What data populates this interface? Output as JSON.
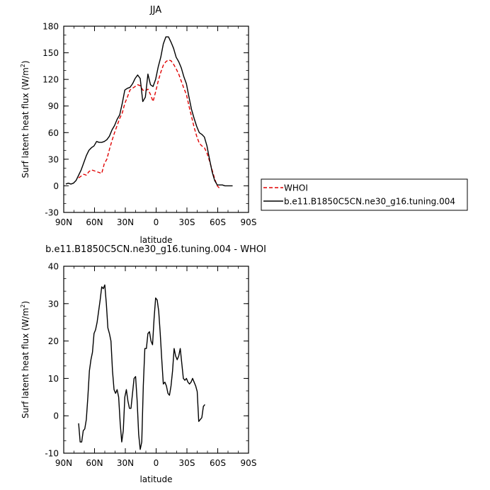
{
  "chart_data": [
    {
      "type": "line",
      "title": "JJA",
      "xlabel": "latitude",
      "ylabel": "Surf latent heat flux (W/m",
      "ylabel_sup": "2",
      "ylabel_close": ")",
      "xlim": [
        90,
        -90
      ],
      "ylim": [
        -30,
        180
      ],
      "xticks": [
        90,
        60,
        30,
        0,
        -30,
        -60,
        -90
      ],
      "xtick_labels": [
        "90N",
        "60N",
        "30N",
        "0",
        "30S",
        "60S",
        "90S"
      ],
      "yticks": [
        -30,
        0,
        30,
        60,
        90,
        120,
        150,
        180
      ],
      "ytick_labels": [
        "-30",
        "0",
        "30",
        "60",
        "90",
        "120",
        "150",
        "180"
      ],
      "legend_position": "right",
      "series": [
        {
          "name": "WHOI",
          "color": "#e00000",
          "dash": "dashed",
          "points": [
            [
              75.5,
              9
            ],
            [
              73,
              11
            ],
            [
              70.5,
              13
            ],
            [
              68,
              12
            ],
            [
              65.5,
              16
            ],
            [
              63,
              18
            ],
            [
              60.5,
              17
            ],
            [
              58,
              16
            ],
            [
              55.5,
              15
            ],
            [
              53,
              14
            ],
            [
              50.5,
              25
            ],
            [
              48,
              30
            ],
            [
              45.5,
              41
            ],
            [
              43,
              51
            ],
            [
              40.5,
              60
            ],
            [
              38,
              68
            ],
            [
              35.5,
              76
            ],
            [
              33,
              82
            ],
            [
              30.5,
              93
            ],
            [
              28,
              100
            ],
            [
              25.5,
              108
            ],
            [
              23,
              110
            ],
            [
              20.5,
              112
            ],
            [
              18,
              114
            ],
            [
              15.5,
              113
            ],
            [
              13,
              108
            ],
            [
              10.5,
              107
            ],
            [
              8,
              109
            ],
            [
              5.5,
              103
            ],
            [
              3,
              95
            ],
            [
              0.5,
              106
            ],
            [
              -2,
              118
            ],
            [
              -4.5,
              128
            ],
            [
              -7,
              136
            ],
            [
              -9.5,
              140
            ],
            [
              -12,
              142
            ],
            [
              -14.5,
              141
            ],
            [
              -17,
              137
            ],
            [
              -19.5,
              132
            ],
            [
              -22,
              126
            ],
            [
              -24.5,
              118
            ],
            [
              -27,
              110
            ],
            [
              -29.5,
              103
            ],
            [
              -32,
              90
            ],
            [
              -34.5,
              78
            ],
            [
              -37,
              66
            ],
            [
              -39.5,
              56
            ],
            [
              -42,
              48
            ],
            [
              -44.5,
              45
            ],
            [
              -47,
              43
            ],
            [
              -49.5,
              37
            ],
            [
              -52,
              28
            ],
            [
              -54.5,
              18
            ],
            [
              -57,
              8
            ],
            [
              -59.5,
              0
            ],
            [
              -62,
              -3
            ]
          ]
        },
        {
          "name": "b.e11.B1850C5CN.ne30_g16.tuning.004",
          "color": "#000000",
          "dash": "solid",
          "points": [
            [
              88,
              2
            ],
            [
              85.5,
              3
            ],
            [
              83,
              2
            ],
            [
              80.5,
              3
            ],
            [
              78,
              6
            ],
            [
              75.5,
              12
            ],
            [
              73,
              18
            ],
            [
              70.5,
              26
            ],
            [
              68,
              34
            ],
            [
              65.5,
              40
            ],
            [
              63,
              43
            ],
            [
              60.5,
              45
            ],
            [
              58,
              50
            ],
            [
              55.5,
              49
            ],
            [
              53,
              49
            ],
            [
              50.5,
              50
            ],
            [
              48,
              52
            ],
            [
              45.5,
              56
            ],
            [
              43,
              63
            ],
            [
              40.5,
              68
            ],
            [
              38,
              75
            ],
            [
              35.5,
              80
            ],
            [
              33,
              93
            ],
            [
              30.5,
              108
            ],
            [
              28,
              110
            ],
            [
              25.5,
              111
            ],
            [
              23,
              115
            ],
            [
              20.5,
              121
            ],
            [
              18,
              125
            ],
            [
              15.5,
              121
            ],
            [
              13,
              95
            ],
            [
              10.5,
              100
            ],
            [
              8,
              126
            ],
            [
              5.5,
              114
            ],
            [
              3,
              112
            ],
            [
              0.5,
              120
            ],
            [
              -2,
              134
            ],
            [
              -4.5,
              145
            ],
            [
              -7,
              160
            ],
            [
              -9.5,
              168
            ],
            [
              -12,
              168
            ],
            [
              -14.5,
              162
            ],
            [
              -17,
              155
            ],
            [
              -19.5,
              145
            ],
            [
              -22,
              140
            ],
            [
              -24.5,
              133
            ],
            [
              -27,
              123
            ],
            [
              -29.5,
              115
            ],
            [
              -32,
              100
            ],
            [
              -34.5,
              86
            ],
            [
              -37,
              76
            ],
            [
              -39.5,
              67
            ],
            [
              -42,
              60
            ],
            [
              -44.5,
              58
            ],
            [
              -47,
              55
            ],
            [
              -49.5,
              45
            ],
            [
              -52,
              30
            ],
            [
              -54.5,
              16
            ],
            [
              -57,
              6
            ],
            [
              -59.5,
              1
            ],
            [
              -62,
              1
            ],
            [
              -64.5,
              1
            ],
            [
              -67,
              0
            ],
            [
              -69.5,
              0
            ],
            [
              -72,
              0
            ],
            [
              -74.5,
              0
            ]
          ]
        }
      ]
    },
    {
      "type": "line",
      "title": "b.e11.B1850C5CN.ne30_g16.tuning.004 - WHOI",
      "xlabel": "latitude",
      "ylabel": "Surf latent heat flux (W/m",
      "ylabel_sup": "2",
      "ylabel_close": ")",
      "xlim": [
        90,
        -90
      ],
      "ylim": [
        -10,
        40
      ],
      "xticks": [
        90,
        60,
        30,
        0,
        -30,
        -60,
        -90
      ],
      "xtick_labels": [
        "90N",
        "60N",
        "30N",
        "0",
        "30S",
        "60S",
        "90S"
      ],
      "yticks": [
        -10,
        0,
        10,
        20,
        30,
        40
      ],
      "ytick_labels": [
        "-10",
        "0",
        "10",
        "20",
        "30",
        "40"
      ],
      "series": [
        {
          "color": "#000000",
          "dash": "solid",
          "points": [
            [
              75.5,
              -2
            ],
            [
              74,
              -7
            ],
            [
              72.5,
              -7
            ],
            [
              71,
              -4
            ],
            [
              69.5,
              -3.5
            ],
            [
              68,
              -1
            ],
            [
              66.5,
              5
            ],
            [
              65,
              12
            ],
            [
              63.5,
              15
            ],
            [
              62,
              17
            ],
            [
              60.5,
              22
            ],
            [
              59,
              23
            ],
            [
              57.5,
              25
            ],
            [
              56,
              28
            ],
            [
              54.5,
              31
            ],
            [
              53,
              34.5
            ],
            [
              51.5,
              34
            ],
            [
              50,
              35
            ],
            [
              48.5,
              30
            ],
            [
              47,
              23.5
            ],
            [
              45.5,
              22
            ],
            [
              44,
              20
            ],
            [
              42.5,
              12
            ],
            [
              41,
              7
            ],
            [
              39.5,
              6
            ],
            [
              38,
              7
            ],
            [
              36.5,
              5
            ],
            [
              35,
              -2
            ],
            [
              33.5,
              -7
            ],
            [
              32,
              -4
            ],
            [
              30.5,
              5
            ],
            [
              29,
              7
            ],
            [
              27.5,
              4
            ],
            [
              26,
              2
            ],
            [
              24.5,
              2
            ],
            [
              23,
              6
            ],
            [
              21.5,
              10
            ],
            [
              20,
              10.5
            ],
            [
              18.5,
              4
            ],
            [
              17,
              -5
            ],
            [
              15.5,
              -9
            ],
            [
              14,
              -7
            ],
            [
              12.5,
              8
            ],
            [
              11,
              18
            ],
            [
              9.5,
              18
            ],
            [
              8,
              22
            ],
            [
              6.5,
              22.5
            ],
            [
              5,
              20
            ],
            [
              3.5,
              19
            ],
            [
              2,
              26
            ],
            [
              0.5,
              31.5
            ],
            [
              -1,
              31
            ],
            [
              -2.5,
              28
            ],
            [
              -4,
              22
            ],
            [
              -5.5,
              15
            ],
            [
              -7,
              8.5
            ],
            [
              -8.5,
              9
            ],
            [
              -10,
              8
            ],
            [
              -11.5,
              6
            ],
            [
              -13,
              5.5
            ],
            [
              -14.5,
              8
            ],
            [
              -16,
              12
            ],
            [
              -17.5,
              18
            ],
            [
              -19,
              16
            ],
            [
              -20.5,
              15
            ],
            [
              -22,
              16
            ],
            [
              -23.5,
              18
            ],
            [
              -25,
              14
            ],
            [
              -26.5,
              10
            ],
            [
              -28,
              9.5
            ],
            [
              -29.5,
              10
            ],
            [
              -31,
              9
            ],
            [
              -32.5,
              8.5
            ],
            [
              -34,
              9
            ],
            [
              -35.5,
              10
            ],
            [
              -37,
              9
            ],
            [
              -38.5,
              8
            ],
            [
              -40,
              6.5
            ],
            [
              -41.5,
              -1.5
            ],
            [
              -43,
              -1
            ],
            [
              -44.5,
              -0.5
            ],
            [
              -46,
              2.5
            ],
            [
              -47.5,
              3
            ]
          ]
        }
      ]
    }
  ]
}
